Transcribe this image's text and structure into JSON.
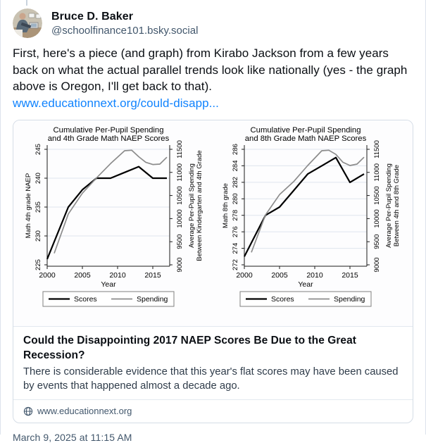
{
  "post": {
    "author_name": "Bruce D. Baker",
    "author_handle": "@schoolfinance101.bsky.social",
    "body": "First, here's a piece (and graph) from Kirabo Jackson from a few years back on what the actual parallel trends look like nationally (yes - the graph above is Oregon, I'll get back to that).",
    "link_text": "www.educationnext.org/could-disapp...",
    "timestamp": "March 9, 2025 at 11:15 AM"
  },
  "card": {
    "title": "Could the Disappointing 2017 NAEP Scores Be Due to the Great Recession?",
    "description": "There is considerable evidence that this year's flat scores may have been caused by events that happened almost a decade ago.",
    "domain": "www.educationnext.org",
    "domain_icon": "globe-icon"
  },
  "colors": {
    "link_blue": "#1083fe",
    "muted_text": "#42576c",
    "card_border": "#d5dde6",
    "chart": {
      "title": "#2d4b96",
      "axis": "#1a1a1a",
      "grid": "#dfe5ed",
      "legend_border": "#7f7f7f",
      "scores": "#000000",
      "spending": "#8c8c8c"
    }
  },
  "chart_data": [
    {
      "type": "line",
      "title_lines": [
        "Cumulative Per-Pupil Spending",
        "and 4th Grade Math NAEP Scores"
      ],
      "x": {
        "label": "Year",
        "ticks": [
          2000,
          2005,
          2010,
          2015
        ],
        "axis_range": [
          2000,
          2017.4
        ]
      },
      "y_left": {
        "label": "Math 4th grade NAEP",
        "range": [
          225,
          245
        ],
        "ticks": [
          225,
          230,
          235,
          240,
          245
        ]
      },
      "y_right": {
        "label_lines": [
          "Average Per-Pupil Spending",
          "Between Kindergarten and 4th Grade"
        ],
        "range": [
          9000,
          11500
        ],
        "ticks": [
          9000,
          9500,
          10000,
          10500,
          11000,
          11500
        ]
      },
      "grid": true,
      "legend_position": "bottom",
      "series": [
        {
          "name": "Scores",
          "axis": "left",
          "color": "#000000",
          "width": 2.2,
          "points": [
            [
              2000,
              226
            ],
            [
              2003,
              235
            ],
            [
              2005,
              238
            ],
            [
              2007,
              240
            ],
            [
              2009,
              240
            ],
            [
              2011,
              241
            ],
            [
              2013,
              242
            ],
            [
              2015,
              240
            ],
            [
              2017,
              240
            ]
          ]
        },
        {
          "name": "Spending",
          "axis": "right",
          "color": "#8c8c8c",
          "width": 1.7,
          "points": [
            [
              2001,
              9250
            ],
            [
              2003,
              10100
            ],
            [
              2005,
              10550
            ],
            [
              2007,
              10880
            ],
            [
              2009,
              11190
            ],
            [
              2011,
              11470
            ],
            [
              2012,
              11480
            ],
            [
              2013,
              11340
            ],
            [
              2014,
              11220
            ],
            [
              2015,
              11170
            ],
            [
              2016,
              11180
            ],
            [
              2017,
              11330
            ]
          ]
        }
      ]
    },
    {
      "type": "line",
      "title_lines": [
        "Cumulative Per-Pupil Spending",
        "and 8th Grade Math NAEP Scores"
      ],
      "x": {
        "label": "Year",
        "ticks": [
          2000,
          2005,
          2010,
          2015
        ],
        "axis_range": [
          2000,
          2017.4
        ]
      },
      "y_left": {
        "label": "Math 8th grade",
        "range": [
          272,
          286
        ],
        "ticks": [
          272,
          274,
          276,
          278,
          280,
          282,
          284,
          286
        ]
      },
      "y_right": {
        "label_lines": [
          "Average Per-Pupil Spending",
          "Between 4th and 8th Grade"
        ],
        "range": [
          9000,
          11500
        ],
        "ticks": [
          9000,
          9500,
          10000,
          10500,
          11000,
          11500
        ]
      },
      "grid": true,
      "legend_position": "bottom",
      "series": [
        {
          "name": "Scores",
          "axis": "left",
          "color": "#000000",
          "width": 2.2,
          "points": [
            [
              2000,
              273
            ],
            [
              2003,
              278
            ],
            [
              2005,
              279
            ],
            [
              2007,
              281
            ],
            [
              2009,
              283
            ],
            [
              2011,
              284
            ],
            [
              2013,
              285
            ],
            [
              2015,
              282
            ],
            [
              2017,
              283
            ]
          ]
        },
        {
          "name": "Spending",
          "axis": "right",
          "color": "#8c8c8c",
          "width": 1.7,
          "points": [
            [
              2001,
              9270
            ],
            [
              2003,
              10080
            ],
            [
              2005,
              10520
            ],
            [
              2007,
              10800
            ],
            [
              2009,
              11150
            ],
            [
              2011,
              11470
            ],
            [
              2012,
              11480
            ],
            [
              2013,
              11390
            ],
            [
              2014,
              11220
            ],
            [
              2015,
              11150
            ],
            [
              2016,
              11180
            ],
            [
              2017,
              11330
            ]
          ]
        }
      ]
    }
  ]
}
